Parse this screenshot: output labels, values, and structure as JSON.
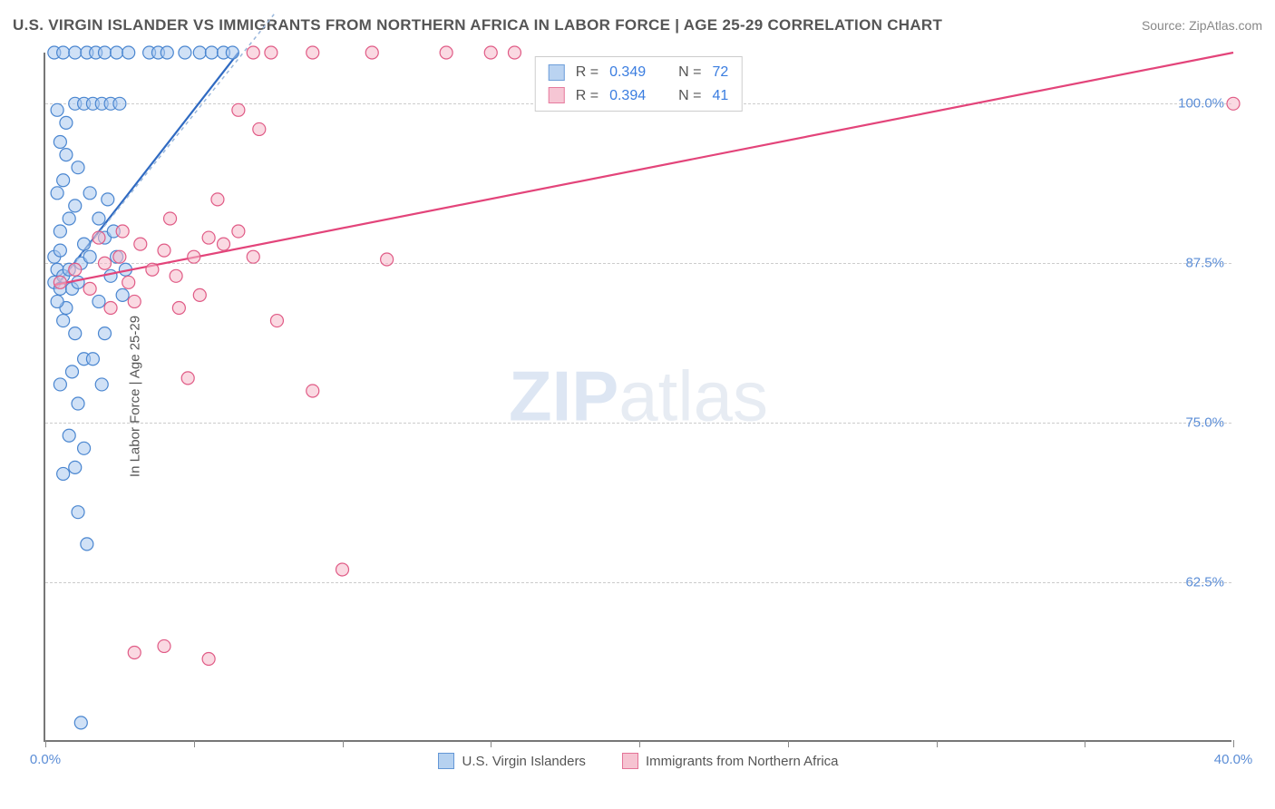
{
  "title": "U.S. VIRGIN ISLANDER VS IMMIGRANTS FROM NORTHERN AFRICA IN LABOR FORCE | AGE 25-29 CORRELATION CHART",
  "source": "Source: ZipAtlas.com",
  "ylabel": "In Labor Force | Age 25-29",
  "watermark_a": "ZIP",
  "watermark_b": "atlas",
  "chart_type": "scatter",
  "background_color": "#ffffff",
  "grid_color": "#cccccc",
  "axis_color": "#777777",
  "tick_label_color": "#5b8dd6",
  "title_fontsize": 17,
  "label_fontsize": 15,
  "xlim": [
    0,
    40
  ],
  "ylim": [
    50,
    104
  ],
  "yticks": [
    62.5,
    75.0,
    87.5,
    100.0
  ],
  "ytick_labels": [
    "62.5%",
    "75.0%",
    "87.5%",
    "100.0%"
  ],
  "xtick_positions": [
    0,
    5,
    10,
    15,
    20,
    25,
    30,
    35,
    40
  ],
  "xtick_labels": {
    "0": "0.0%",
    "40": "40.0%"
  },
  "series": [
    {
      "name": "U.S. Virgin Islanders",
      "fill": "#a9c9ee",
      "stroke": "#4a86d0",
      "fill_opacity": 0.55,
      "marker_radius": 7,
      "r_value": "0.349",
      "n_value": "72",
      "trend": {
        "x1": 0.3,
        "y1": 85.5,
        "x2": 6.5,
        "y2": 104,
        "color": "#2f6ac2",
        "width": 2.2,
        "dash": "4 4",
        "solid_color": "#2f6ac2"
      },
      "points": [
        [
          0.3,
          86
        ],
        [
          0.4,
          87
        ],
        [
          0.5,
          85.5
        ],
        [
          0.6,
          86.5
        ],
        [
          0.8,
          87
        ],
        [
          0.3,
          88
        ],
        [
          0.5,
          88.5
        ],
        [
          0.7,
          84
        ],
        [
          0.9,
          85.5
        ],
        [
          0.4,
          84.5
        ],
        [
          0.6,
          83
        ],
        [
          1.1,
          86
        ],
        [
          1.2,
          87.5
        ],
        [
          0.5,
          90
        ],
        [
          0.8,
          91
        ],
        [
          1.0,
          92
        ],
        [
          0.4,
          93
        ],
        [
          0.6,
          94
        ],
        [
          1.3,
          89
        ],
        [
          1.5,
          88
        ],
        [
          1.1,
          95
        ],
        [
          0.7,
          96
        ],
        [
          0.5,
          97
        ],
        [
          1.0,
          82
        ],
        [
          1.3,
          80
        ],
        [
          0.9,
          79
        ],
        [
          1.1,
          76.5
        ],
        [
          0.6,
          71
        ],
        [
          1.1,
          68
        ],
        [
          1.4,
          65.5
        ],
        [
          1.2,
          51.5
        ],
        [
          1.0,
          100
        ],
        [
          1.3,
          100
        ],
        [
          1.6,
          100
        ],
        [
          1.9,
          100
        ],
        [
          2.2,
          100
        ],
        [
          2.5,
          100
        ],
        [
          0.3,
          104
        ],
        [
          0.6,
          104
        ],
        [
          1.0,
          104
        ],
        [
          1.4,
          104
        ],
        [
          1.7,
          104
        ],
        [
          2.0,
          104
        ],
        [
          2.4,
          104
        ],
        [
          2.8,
          104
        ],
        [
          3.5,
          104
        ],
        [
          3.8,
          104
        ],
        [
          4.1,
          104
        ],
        [
          4.7,
          104
        ],
        [
          5.2,
          104
        ],
        [
          5.6,
          104
        ],
        [
          6.0,
          104
        ],
        [
          6.3,
          104
        ],
        [
          0.4,
          99.5
        ],
        [
          0.7,
          98.5
        ],
        [
          1.5,
          93
        ],
        [
          1.8,
          91
        ],
        [
          2.0,
          89.5
        ],
        [
          2.2,
          86.5
        ],
        [
          1.8,
          84.5
        ],
        [
          2.0,
          82
        ],
        [
          2.4,
          88
        ],
        [
          2.7,
          87
        ],
        [
          1.6,
          80
        ],
        [
          1.9,
          78
        ],
        [
          0.5,
          78
        ],
        [
          0.8,
          74
        ],
        [
          1.3,
          73
        ],
        [
          1.0,
          71.5
        ],
        [
          2.1,
          92.5
        ],
        [
          2.3,
          90
        ],
        [
          2.6,
          85
        ]
      ]
    },
    {
      "name": "Immigants from Northern Africa",
      "display_name": "Immigrants from Northern Africa",
      "fill": "#f5b9ca",
      "stroke": "#e05b86",
      "fill_opacity": 0.55,
      "marker_radius": 7,
      "r_value": "0.394",
      "n_value": "41",
      "trend": {
        "x1": 0.3,
        "y1": 85.8,
        "x2": 40,
        "y2": 104,
        "color": "#e3447a",
        "width": 2.2
      },
      "points": [
        [
          0.5,
          86
        ],
        [
          1.0,
          87
        ],
        [
          1.5,
          85.5
        ],
        [
          2.0,
          87.5
        ],
        [
          2.5,
          88
        ],
        [
          2.8,
          86
        ],
        [
          3.2,
          89
        ],
        [
          3.6,
          87
        ],
        [
          4.0,
          88.5
        ],
        [
          4.4,
          86.5
        ],
        [
          5.0,
          88
        ],
        [
          5.5,
          89.5
        ],
        [
          6.0,
          89
        ],
        [
          6.5,
          90
        ],
        [
          7.0,
          88
        ],
        [
          2.2,
          84
        ],
        [
          3.0,
          84.5
        ],
        [
          4.5,
          84
        ],
        [
          5.2,
          85
        ],
        [
          4.2,
          91
        ],
        [
          5.8,
          92.5
        ],
        [
          7.0,
          104
        ],
        [
          7.6,
          104
        ],
        [
          9.0,
          104
        ],
        [
          11.0,
          104
        ],
        [
          13.5,
          104
        ],
        [
          15.0,
          104
        ],
        [
          15.8,
          104
        ],
        [
          6.5,
          99.5
        ],
        [
          7.2,
          98
        ],
        [
          4.8,
          78.5
        ],
        [
          7.8,
          83
        ],
        [
          9.0,
          77.5
        ],
        [
          11.5,
          87.8
        ],
        [
          3.0,
          57
        ],
        [
          4.0,
          57.5
        ],
        [
          5.5,
          56.5
        ],
        [
          10.0,
          63.5
        ],
        [
          1.8,
          89.5
        ],
        [
          2.6,
          90
        ],
        [
          40.0,
          100
        ]
      ]
    }
  ],
  "legend_labels": {
    "r": "R =",
    "n": "N ="
  }
}
